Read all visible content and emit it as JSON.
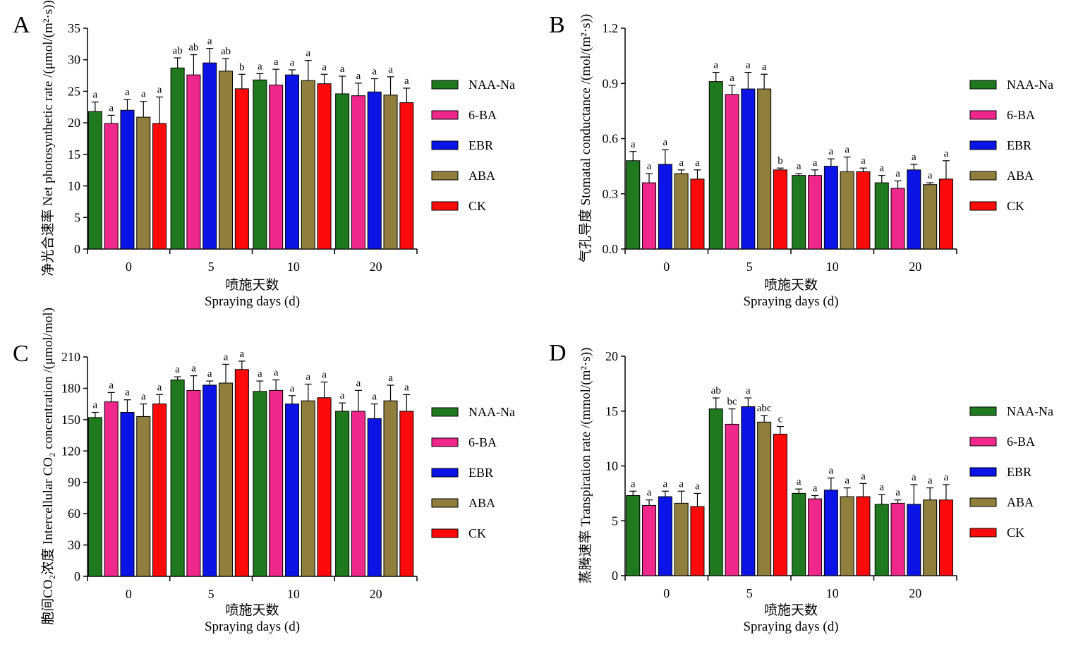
{
  "legend": [
    "NAA-Na",
    "6-BA",
    "EBR",
    "ABA",
    "CK"
  ],
  "colors": [
    "#1f7a1f",
    "#f0288c",
    "#0a14e6",
    "#8f7e3c",
    "#ff0a0a"
  ],
  "chart_data": [
    {
      "type": "bar",
      "panel": "A",
      "categories": [
        "0",
        "5",
        "10",
        "20"
      ],
      "xlabel_cn": "喷施天数",
      "xlabel_en": "Spraying days",
      "xlabel_unit": "(d)",
      "ylabel_cn": "净光合速率",
      "ylabel_en": "Net photosynthetic rate /(μmol/(m²·s))",
      "ylim": [
        0,
        35
      ],
      "yticks": [
        0,
        5,
        10,
        15,
        20,
        25,
        30,
        35
      ],
      "tick_labels": [
        "0",
        "5",
        "10",
        "15",
        "20",
        "25",
        "30",
        "35"
      ],
      "series": [
        {
          "name": "NAA-Na",
          "values": [
            21.8,
            28.7,
            26.8,
            24.6
          ],
          "errors": [
            1.5,
            1.6,
            1.0,
            2.8
          ],
          "sig": [
            "a",
            "ab",
            "a",
            "a"
          ]
        },
        {
          "name": "6-BA",
          "values": [
            19.9,
            27.6,
            26.0,
            24.3
          ],
          "errors": [
            1.3,
            3.2,
            2.5,
            2.0
          ],
          "sig": [
            "a",
            "ab",
            "a",
            "a"
          ]
        },
        {
          "name": "EBR",
          "values": [
            22.0,
            29.5,
            27.6,
            24.9
          ],
          "errors": [
            1.7,
            2.3,
            0.8,
            2.1
          ],
          "sig": [
            "a",
            "a",
            "a",
            "a"
          ]
        },
        {
          "name": "ABA",
          "values": [
            20.9,
            28.2,
            26.7,
            24.4
          ],
          "errors": [
            2.5,
            2.0,
            3.2,
            2.9
          ],
          "sig": [
            "a",
            "ab",
            "a",
            "a"
          ]
        },
        {
          "name": "CK",
          "values": [
            19.9,
            25.4,
            26.2,
            23.2
          ],
          "errors": [
            4.2,
            2.3,
            1.5,
            2.3
          ],
          "sig": [
            "a",
            "b",
            "a",
            "a"
          ]
        }
      ]
    },
    {
      "type": "bar",
      "panel": "B",
      "categories": [
        "0",
        "5",
        "10",
        "20"
      ],
      "xlabel_cn": "喷施天数",
      "xlabel_en": "Spraying days",
      "xlabel_unit": "(d)",
      "ylabel_cn": "气孔导度",
      "ylabel_en": "Stomatal conductance /(mol/(m²·s))",
      "ylim": [
        0,
        1.2
      ],
      "yticks": [
        0,
        0.3,
        0.6,
        0.9,
        1.2
      ],
      "tick_labels": [
        "0.0",
        "0.3",
        "0.6",
        "0.9",
        "1.2"
      ],
      "series": [
        {
          "name": "NAA-Na",
          "values": [
            0.48,
            0.91,
            0.4,
            0.36
          ],
          "errors": [
            0.05,
            0.05,
            0.01,
            0.04
          ],
          "sig": [
            "a",
            "a",
            "a",
            "a"
          ]
        },
        {
          "name": "6-BA",
          "values": [
            0.36,
            0.84,
            0.4,
            0.33
          ],
          "errors": [
            0.05,
            0.05,
            0.03,
            0.04
          ],
          "sig": [
            "a",
            "a",
            "a",
            "a"
          ]
        },
        {
          "name": "EBR",
          "values": [
            0.46,
            0.87,
            0.45,
            0.43
          ],
          "errors": [
            0.08,
            0.09,
            0.04,
            0.03
          ],
          "sig": [
            "a",
            "a",
            "a",
            "a"
          ]
        },
        {
          "name": "ABA",
          "values": [
            0.41,
            0.87,
            0.42,
            0.35
          ],
          "errors": [
            0.02,
            0.08,
            0.08,
            0.01
          ],
          "sig": [
            "a",
            "a",
            "a",
            "a"
          ]
        },
        {
          "name": "CK",
          "values": [
            0.38,
            0.43,
            0.42,
            0.38
          ],
          "errors": [
            0.05,
            0.01,
            0.02,
            0.1
          ],
          "sig": [
            "a",
            "b",
            "a",
            "a"
          ]
        }
      ]
    },
    {
      "type": "bar",
      "panel": "C",
      "categories": [
        "0",
        "5",
        "10",
        "20"
      ],
      "xlabel_cn": "喷施天数",
      "xlabel_en": "Spraying days",
      "xlabel_unit": "(d)",
      "ylabel_cn": "胞间CO₂浓度",
      "ylabel_en": "Intercellular CO₂ concentration /(μmol/mol)",
      "ylim": [
        0,
        210
      ],
      "yticks": [
        0,
        30,
        60,
        90,
        120,
        150,
        180,
        210
      ],
      "tick_labels": [
        "0",
        "30",
        "60",
        "90",
        "120",
        "150",
        "180",
        "210"
      ],
      "series": [
        {
          "name": "NAA-Na",
          "values": [
            152,
            188,
            177,
            158
          ],
          "errors": [
            5,
            3,
            10,
            8
          ],
          "sig": [
            "a",
            "a",
            "a",
            "a"
          ]
        },
        {
          "name": "6-BA",
          "values": [
            167,
            178,
            178,
            158
          ],
          "errors": [
            9,
            14,
            10,
            20
          ],
          "sig": [
            "a",
            "a",
            "a",
            "a"
          ]
        },
        {
          "name": "EBR",
          "values": [
            157,
            183,
            165,
            151
          ],
          "errors": [
            12,
            4,
            8,
            14
          ],
          "sig": [
            "a",
            "a",
            "a",
            "a"
          ]
        },
        {
          "name": "ABA",
          "values": [
            153,
            185,
            168,
            168
          ],
          "errors": [
            12,
            18,
            16,
            15
          ],
          "sig": [
            "a",
            "a",
            "a",
            "a"
          ]
        },
        {
          "name": "CK",
          "values": [
            165,
            198,
            171,
            158
          ],
          "errors": [
            9,
            8,
            15,
            16
          ],
          "sig": [
            "a",
            "a",
            "a",
            "a"
          ]
        }
      ]
    },
    {
      "type": "bar",
      "panel": "D",
      "categories": [
        "0",
        "5",
        "10",
        "20"
      ],
      "xlabel_cn": "喷施天数",
      "xlabel_en": "Spraying days",
      "xlabel_unit": "(d)",
      "ylabel_cn": "蒸腾速率",
      "ylabel_en": "Transpiration rate /(mmol/(m²·s))",
      "ylim": [
        0,
        20
      ],
      "yticks": [
        0,
        5,
        10,
        15,
        20
      ],
      "tick_labels": [
        "0",
        "5",
        "10",
        "15",
        "20"
      ],
      "series": [
        {
          "name": "NAA-Na",
          "values": [
            7.3,
            15.2,
            7.5,
            6.5
          ],
          "errors": [
            0.4,
            1.0,
            0.4,
            0.9
          ],
          "sig": [
            "a",
            "ab",
            "a",
            "a"
          ]
        },
        {
          "name": "6-BA",
          "values": [
            6.4,
            13.8,
            7.0,
            6.6
          ],
          "errors": [
            0.5,
            1.4,
            0.3,
            0.3
          ],
          "sig": [
            "a",
            "bc",
            "a",
            "a"
          ]
        },
        {
          "name": "EBR",
          "values": [
            7.2,
            15.4,
            7.8,
            6.5
          ],
          "errors": [
            0.5,
            0.8,
            1.1,
            1.8
          ],
          "sig": [
            "a",
            "a",
            "a",
            "a"
          ]
        },
        {
          "name": "ABA",
          "values": [
            6.6,
            14.0,
            7.2,
            6.9
          ],
          "errors": [
            1.1,
            0.6,
            0.8,
            1.1
          ],
          "sig": [
            "a",
            "abc",
            "a",
            "a"
          ]
        },
        {
          "name": "CK",
          "values": [
            6.3,
            12.9,
            7.2,
            6.9
          ],
          "errors": [
            1.2,
            0.7,
            1.2,
            1.4
          ],
          "sig": [
            "a",
            "c",
            "a",
            "a"
          ]
        }
      ]
    }
  ]
}
